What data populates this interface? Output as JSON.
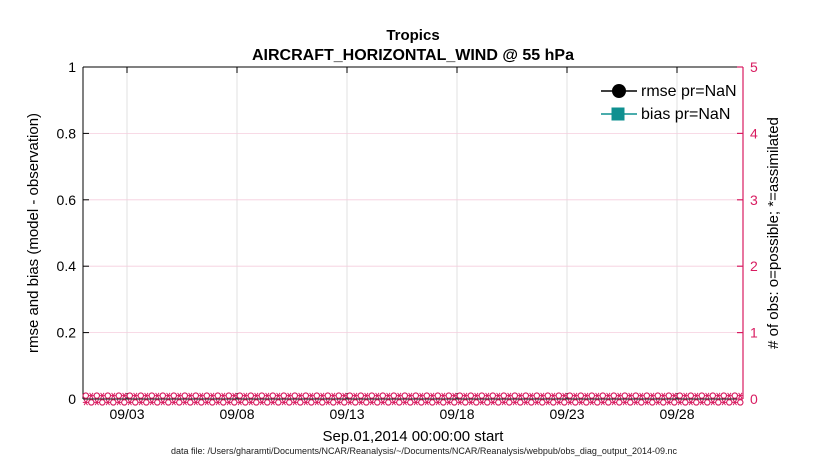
{
  "figure": {
    "title_line1": "Tropics",
    "title_line2": "AIRCRAFT_HORIZONTAL_WIND @ 55 hPa",
    "xlabel": "Sep.01,2014 00:00:00 start",
    "left_ylabel": "rmse and bias (model - observation)",
    "right_ylabel": "# of obs: o=possible; *=assimilated",
    "footer": "data file: /Users/gharamti/Documents/NCAR/Reanalysis/~/Documents/NCAR/Reanalysis/webpub/obs_diag_output_2014-09.nc",
    "colors": {
      "axis_left": "#000000",
      "axis_right": "#d81b60",
      "obs_markers": "#d81b60",
      "grid_vertical": "#d9d9d9",
      "grid_horizontal": "#f5cedd",
      "rmse": "#000000",
      "bias": "#0f9090",
      "background": "#ffffff"
    },
    "legend": {
      "items": [
        {
          "label": "rmse pr=NaN",
          "marker": "filled-circle",
          "color": "#000000"
        },
        {
          "label": "bias pr=NaN",
          "marker": "filled-square",
          "color": "#0f9090"
        }
      ]
    }
  },
  "chart_data": {
    "type": "line",
    "title": "Tropics",
    "subtitle": "AIRCRAFT_HORIZONTAL_WIND @ 55 hPa",
    "xlabel": "Sep.01,2014 00:00:00 start",
    "x_axis": {
      "start": "2014-09-01 00:00:00",
      "interval_hours": 6,
      "n_points": 120,
      "domain_days": [
        0,
        30
      ],
      "tick_days": [
        2,
        7,
        12,
        17,
        22,
        27
      ],
      "tick_labels": [
        "09/03",
        "09/08",
        "09/13",
        "09/18",
        "09/23",
        "09/28"
      ]
    },
    "left_axis": {
      "label": "rmse and bias (model - observation)",
      "range": [
        0,
        1
      ],
      "ticks": [
        0,
        0.2,
        0.4,
        0.6,
        0.8,
        1
      ],
      "tick_labels": [
        "0",
        "0.2",
        "0.4",
        "0.6",
        "0.8",
        "1"
      ]
    },
    "right_axis": {
      "label": "# of obs: o=possible; *=assimilated",
      "range": [
        0,
        5
      ],
      "ticks": [
        0,
        1,
        2,
        3,
        4,
        5
      ],
      "tick_labels": [
        "0",
        "1",
        "2",
        "3",
        "4",
        "5"
      ]
    },
    "grid": true,
    "legend_position": "top-right-inside",
    "series": [
      {
        "name": "rmse pr=NaN",
        "axis": "left",
        "marker": "filled-circle",
        "color": "#000000",
        "values": "NaN (no points plotted)"
      },
      {
        "name": "bias pr=NaN",
        "axis": "left",
        "marker": "filled-square",
        "color": "#0f9090",
        "values": "NaN (no points plotted)"
      },
      {
        "name": "# of obs possible (o)",
        "axis": "right",
        "marker": "o",
        "color": "#d81b60",
        "value_constant": 0
      },
      {
        "name": "# of obs assimilated (*)",
        "axis": "right",
        "marker": "*",
        "color": "#d81b60",
        "value_constant": 0
      }
    ]
  }
}
